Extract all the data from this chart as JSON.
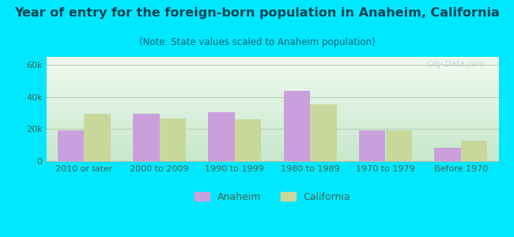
{
  "title": "Year of entry for the foreign-born population in Anaheim, California",
  "subtitle": "(Note: State values scaled to Anaheim population)",
  "categories": [
    "2010 or later",
    "2000 to 2009",
    "1990 to 1999",
    "1980 to 1989",
    "1970 to 1979",
    "Before 1970"
  ],
  "anaheim_values": [
    19000,
    29500,
    30500,
    44000,
    19000,
    8500
  ],
  "california_values": [
    29500,
    26500,
    26000,
    35500,
    19200,
    13000
  ],
  "anaheim_color": "#c9a0dc",
  "california_color": "#c8d89a",
  "bar_width": 0.35,
  "ylim": [
    0,
    65000
  ],
  "yticks": [
    0,
    20000,
    40000,
    60000
  ],
  "ytick_labels": [
    "0",
    "20k",
    "40k",
    "60k"
  ],
  "background_outer": "#00e8ff",
  "title_color": "#004455",
  "subtitle_color": "#006677",
  "grid_color": "#b8cca8",
  "title_fontsize": 11.5,
  "subtitle_fontsize": 8.5,
  "axis_fontsize": 8,
  "legend_fontsize": 9,
  "watermark": "City-Data.com"
}
